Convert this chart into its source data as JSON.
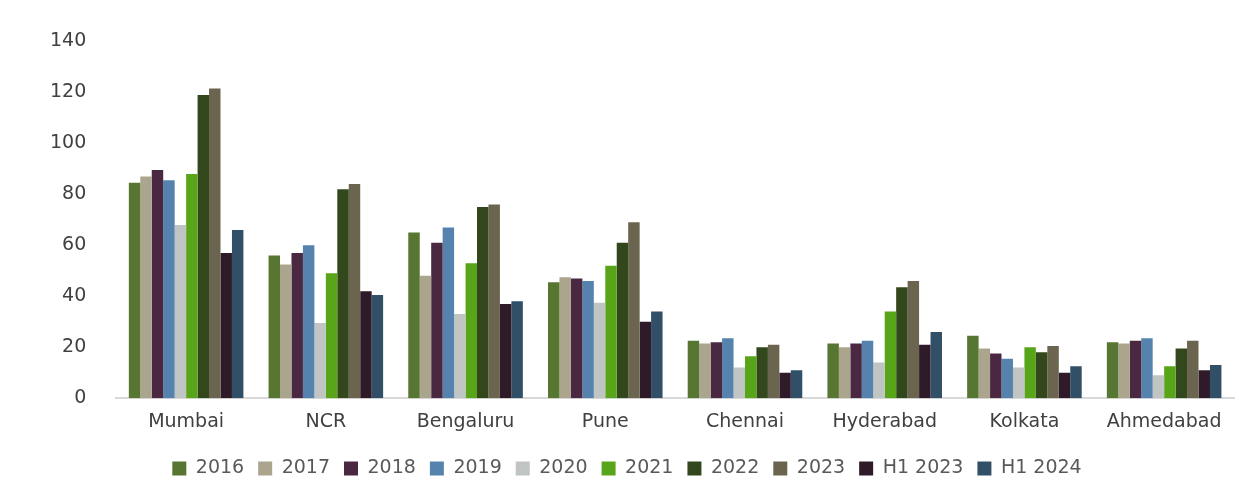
{
  "chart_data": {
    "type": "bar",
    "categories": [
      "Mumbai",
      "NCR",
      "Bengaluru",
      "Pune",
      "Chennai",
      "Hyderabad",
      "Kolkata",
      "Ahmedabad"
    ],
    "ylim": [
      0,
      140
    ],
    "yticks": [
      0,
      20,
      40,
      60,
      80,
      100,
      120,
      140
    ],
    "grid": false,
    "legend": "bottom",
    "series": [
      {
        "name": "2016",
        "color": "#567631",
        "values": [
          84.5,
          56,
          65,
          45.5,
          22.5,
          21.5,
          24.5,
          22
        ]
      },
      {
        "name": "2017",
        "color": "#aba58d",
        "values": [
          87,
          52.5,
          48,
          47.5,
          21.5,
          20,
          19.5,
          21.5
        ]
      },
      {
        "name": "2018",
        "color": "#4b2842",
        "values": [
          89.5,
          57,
          61,
          47,
          22,
          21.5,
          17.5,
          22.5
        ]
      },
      {
        "name": "2019",
        "color": "#5583ad",
        "values": [
          85.5,
          60,
          67,
          46,
          23.5,
          22.5,
          15.5,
          23.5
        ]
      },
      {
        "name": "2020",
        "color": "#c0c5c3",
        "values": [
          68,
          29.5,
          33,
          37.5,
          12,
          14,
          12,
          9
        ]
      },
      {
        "name": "2021",
        "color": "#58a51a",
        "values": [
          88,
          49,
          53,
          52,
          16.5,
          34,
          20,
          12.5
        ]
      },
      {
        "name": "2022",
        "color": "#32471c",
        "values": [
          119,
          82,
          75,
          61,
          20,
          43.5,
          18,
          19.5
        ]
      },
      {
        "name": "2023",
        "color": "#6b644e",
        "values": [
          121.5,
          84,
          76,
          69,
          21,
          46,
          20.5,
          22.5
        ]
      },
      {
        "name": "H1 2023",
        "color": "#2e1a28",
        "values": [
          57,
          42,
          37,
          30,
          10,
          21,
          10,
          11
        ]
      },
      {
        "name": "H1 2024",
        "color": "#324f68",
        "values": [
          66,
          40.5,
          38,
          34,
          11,
          26,
          12.5,
          13
        ]
      }
    ]
  }
}
